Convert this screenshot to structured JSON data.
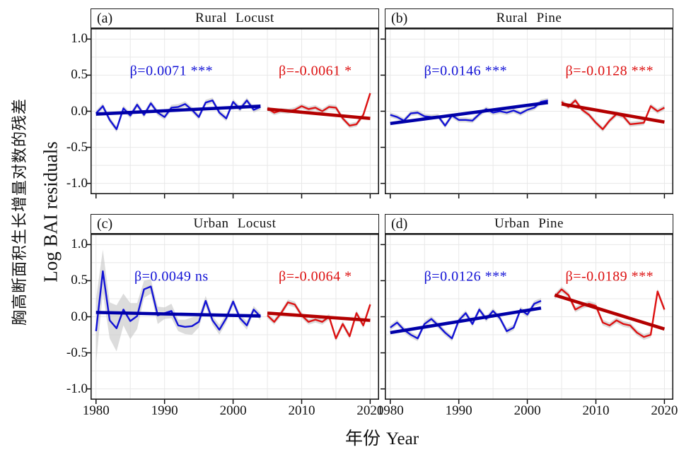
{
  "figure": {
    "ylabel_cn": "胸高断面积生长增量对数的残差",
    "ylabel_en": "Log BAI residuals",
    "xlabel_cn": "年份",
    "xlabel_en": "Year",
    "y_ticks": [
      "1.0",
      "0.5",
      "0.0",
      "-0.5",
      "-1.0"
    ],
    "x_ticks": [
      "1980",
      "1990",
      "2000",
      "2010",
      "2020"
    ],
    "colors": {
      "blue_line": "#1212d6",
      "blue_trend": "#0000a8",
      "red_line": "#dd1111",
      "red_trend": "#b30000",
      "ci_band": "#c4c4c4",
      "grid": "#e8e8e8",
      "frame": "#1a1a1a"
    }
  },
  "chart_data": {
    "type": "line",
    "x_range": [
      1979.2,
      2021.3
    ],
    "y_range": [
      -1.15,
      1.15
    ],
    "y_tick_values": [
      1.0,
      0.5,
      0.0,
      -0.5,
      -1.0
    ],
    "x_tick_values": [
      1980,
      1990,
      2000,
      2010,
      2020
    ],
    "grid": {
      "x_step_years": 5,
      "y_step": 0.25,
      "on": true
    },
    "x_step": 1,
    "panels": [
      {
        "id": "a",
        "label": "(a)",
        "title": "Rural Locust",
        "series": [
          {
            "name": "pre-2005",
            "color": "blue",
            "beta": 0.0071,
            "significance": "***",
            "beta_label": "β=0.0071 ***",
            "x_start": 1980,
            "values": [
              -0.03,
              0.07,
              -0.12,
              -0.25,
              0.04,
              -0.06,
              0.09,
              -0.05,
              0.11,
              -0.02,
              -0.08,
              0.05,
              0.06,
              0.1,
              0.02,
              -0.08,
              0.12,
              0.15,
              -0.02,
              -0.1,
              0.13,
              0.03,
              0.15,
              0.02,
              0.06
            ],
            "ci_halfwidth": 0.04,
            "trend": {
              "start": -0.04,
              "end": 0.07
            }
          },
          {
            "name": "post-2005",
            "color": "red",
            "beta": -0.0061,
            "significance": "*",
            "beta_label": "β=-0.0061 *",
            "x_start": 2005,
            "values": [
              0.04,
              -0.02,
              0.01,
              0.0,
              0.02,
              0.07,
              0.03,
              0.05,
              0.0,
              0.06,
              0.05,
              -0.1,
              -0.2,
              -0.18,
              -0.05,
              0.25
            ],
            "ci_halfwidth": 0.035,
            "trend": {
              "start": 0.03,
              "end": -0.1
            }
          }
        ]
      },
      {
        "id": "b",
        "label": "(b)",
        "title": "Rural Pine",
        "series": [
          {
            "name": "pre-2005",
            "color": "blue",
            "beta": 0.0146,
            "significance": "***",
            "beta_label": "β=0.0146 ***",
            "x_start": 1980,
            "values": [
              -0.05,
              -0.08,
              -0.13,
              -0.03,
              -0.02,
              -0.07,
              -0.08,
              -0.07,
              -0.2,
              -0.06,
              -0.12,
              -0.12,
              -0.13,
              -0.04,
              0.03,
              -0.02,
              0.0,
              -0.02,
              0.01,
              -0.03,
              0.02,
              0.05,
              0.13,
              0.15
            ],
            "ci_halfwidth": 0.035,
            "trend": {
              "start": -0.17,
              "end": 0.12
            }
          },
          {
            "name": "post-2005",
            "color": "red",
            "beta": -0.0128,
            "significance": "***",
            "beta_label": "β=-0.0128 ***",
            "x_start": 2005,
            "values": [
              0.13,
              0.06,
              0.15,
              0.02,
              -0.05,
              -0.16,
              -0.25,
              -0.13,
              -0.04,
              -0.07,
              -0.18,
              -0.17,
              -0.16,
              0.07,
              0.0,
              0.05
            ],
            "ci_halfwidth": 0.035,
            "trend": {
              "start": 0.1,
              "end": -0.15
            }
          }
        ]
      },
      {
        "id": "c",
        "label": "(c)",
        "title": "Urban Locust",
        "series": [
          {
            "name": "pre-2005",
            "color": "blue",
            "beta": 0.0049,
            "significance": "ns",
            "beta_label": "β=0.0049 ns",
            "x_start": 1980,
            "values": [
              -0.2,
              0.63,
              -0.05,
              -0.16,
              0.1,
              -0.06,
              0.01,
              0.38,
              0.42,
              0.02,
              0.05,
              0.08,
              -0.12,
              -0.14,
              -0.13,
              -0.07,
              0.22,
              -0.05,
              -0.18,
              -0.02,
              0.21,
              -0.02,
              -0.12,
              0.1,
              0.0
            ],
            "ci": [
              0.45,
              0.3,
              0.25,
              0.32,
              0.22,
              0.25,
              0.18,
              0.12,
              0.1,
              0.12,
              0.08,
              0.1,
              0.08,
              0.1,
              0.12,
              0.08,
              0.07,
              0.06,
              0.07,
              0.06,
              0.05,
              0.05,
              0.06,
              0.05,
              0.05
            ],
            "trend": {
              "start": 0.06,
              "end": 0.01
            }
          },
          {
            "name": "post-2005",
            "color": "red",
            "beta": -0.0064,
            "significance": "*",
            "beta_label": "β=-0.0064 *",
            "x_start": 2005,
            "values": [
              0.02,
              -0.07,
              0.05,
              0.2,
              0.17,
              0.02,
              -0.07,
              -0.04,
              -0.07,
              0.0,
              -0.3,
              -0.1,
              -0.27,
              0.05,
              -0.12,
              0.17
            ],
            "ci_halfwidth": 0.04,
            "trend": {
              "start": 0.05,
              "end": -0.05
            }
          }
        ]
      },
      {
        "id": "d",
        "label": "(d)",
        "title": "Urban Pine",
        "series": [
          {
            "name": "pre-2003",
            "color": "blue",
            "beta": 0.0126,
            "significance": "***",
            "beta_label": "β=0.0126 ***",
            "x_start": 1980,
            "values": [
              -0.15,
              -0.08,
              -0.18,
              -0.25,
              -0.3,
              -0.1,
              -0.03,
              -0.12,
              -0.22,
              -0.3,
              -0.05,
              0.05,
              -0.1,
              0.1,
              -0.03,
              0.08,
              -0.02,
              -0.2,
              -0.15,
              0.1,
              0.03,
              0.18,
              0.22
            ],
            "ci_halfwidth": 0.04,
            "trend": {
              "start": -0.22,
              "end": 0.12
            }
          },
          {
            "name": "post-2003",
            "color": "red",
            "beta": -0.0189,
            "significance": "***",
            "beta_label": "β=-0.0189 ***",
            "x_start": 2004,
            "values": [
              0.28,
              0.38,
              0.3,
              0.1,
              0.15,
              0.18,
              0.15,
              -0.08,
              -0.12,
              -0.05,
              -0.1,
              -0.12,
              -0.22,
              -0.28,
              -0.25,
              0.35,
              0.1
            ],
            "ci_halfwidth": 0.04,
            "trend": {
              "start": 0.3,
              "end": -0.17
            }
          }
        ]
      }
    ]
  }
}
